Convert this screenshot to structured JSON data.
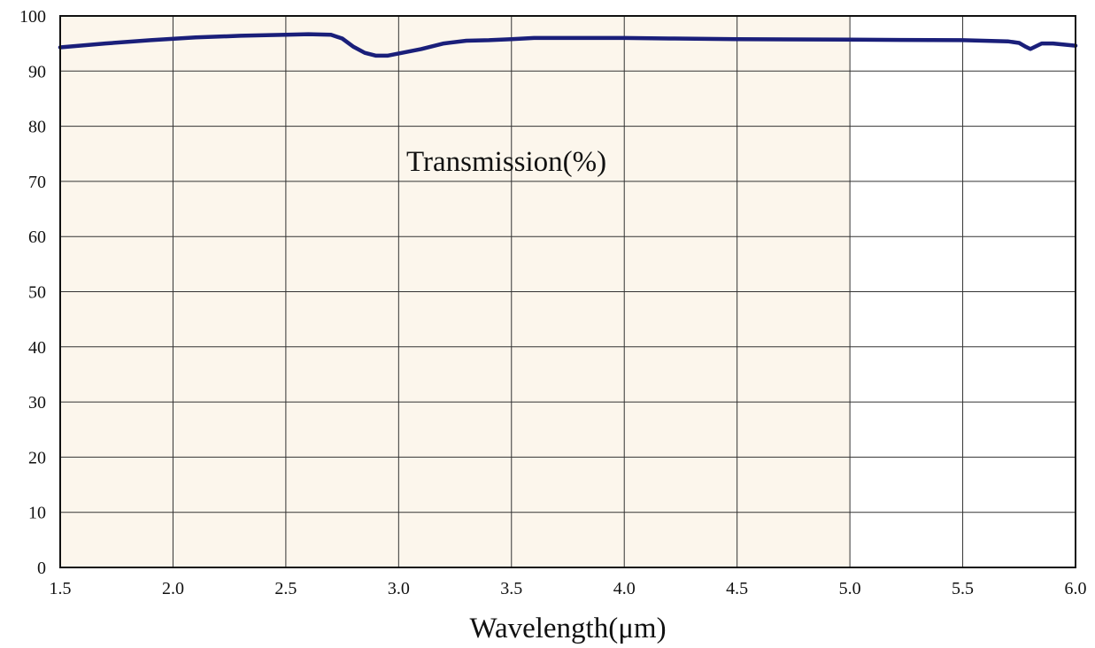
{
  "chart_data": {
    "type": "line",
    "xlabel": "Wavelength(μm)",
    "ylabel": "",
    "annotation": "Transmission(%)",
    "xlim": [
      1.5,
      6.0
    ],
    "ylim": [
      0,
      100
    ],
    "x_ticks": [
      "1.5",
      "2.0",
      "2.5",
      "3.0",
      "3.5",
      "4.0",
      "4.5",
      "5.0",
      "5.5",
      "6.0"
    ],
    "y_ticks": [
      "0",
      "10",
      "20",
      "30",
      "40",
      "50",
      "60",
      "70",
      "80",
      "90",
      "100"
    ],
    "grid": true,
    "shaded_region": {
      "x_start": 1.5,
      "x_end": 5.0,
      "color": "#fcf6ec"
    },
    "line_color": "#1a1f7a",
    "series": [
      {
        "x": [
          1.5,
          1.7,
          1.9,
          2.1,
          2.3,
          2.5,
          2.6,
          2.7,
          2.75,
          2.8,
          2.85,
          2.9,
          2.95,
          3.0,
          3.1,
          3.2,
          3.3,
          3.4,
          3.5,
          3.6,
          3.8,
          4.0,
          4.2,
          4.5,
          5.0,
          5.5,
          5.7,
          5.75,
          5.78,
          5.8,
          5.82,
          5.85,
          5.9,
          6.0
        ],
        "y": [
          94.3,
          95.0,
          95.6,
          96.1,
          96.4,
          96.6,
          96.7,
          96.6,
          95.9,
          94.4,
          93.3,
          92.8,
          92.8,
          93.2,
          94.0,
          95.0,
          95.5,
          95.6,
          95.8,
          96.0,
          96.0,
          96.0,
          95.9,
          95.8,
          95.7,
          95.6,
          95.4,
          95.1,
          94.4,
          94.0,
          94.4,
          95.0,
          95.0,
          94.6
        ]
      }
    ]
  }
}
